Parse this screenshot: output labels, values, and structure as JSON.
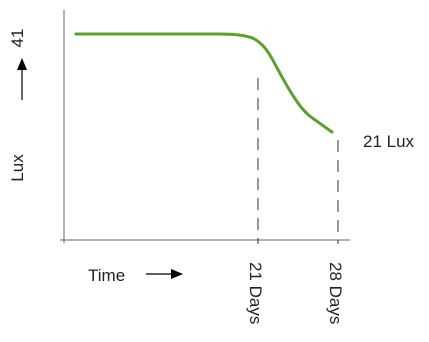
{
  "chart_data": {
    "type": "line",
    "xlabel": "Time",
    "ylabel": "Lux",
    "series": [
      {
        "color": "#5aa02c",
        "points": [
          {
            "x": 0,
            "y": 41
          },
          {
            "x": 14,
            "y": 41
          },
          {
            "x": 17,
            "y": 41
          },
          {
            "x": 19,
            "y": 40.5
          },
          {
            "x": 20,
            "y": 39.5
          },
          {
            "x": 21,
            "y": 37.5
          },
          {
            "x": 22,
            "y": 34
          },
          {
            "x": 23.5,
            "y": 29
          },
          {
            "x": 25,
            "y": 25
          },
          {
            "x": 26.5,
            "y": 23
          },
          {
            "x": 28,
            "y": 21
          }
        ]
      }
    ],
    "annotations": {
      "y_start_label": "41",
      "end_label": "21 Lux",
      "x_markers": [
        {
          "x": 21,
          "label": "21 Days"
        },
        {
          "x": 28,
          "label": "28 Days"
        }
      ]
    },
    "axis_color": "#666666",
    "grid": false
  }
}
